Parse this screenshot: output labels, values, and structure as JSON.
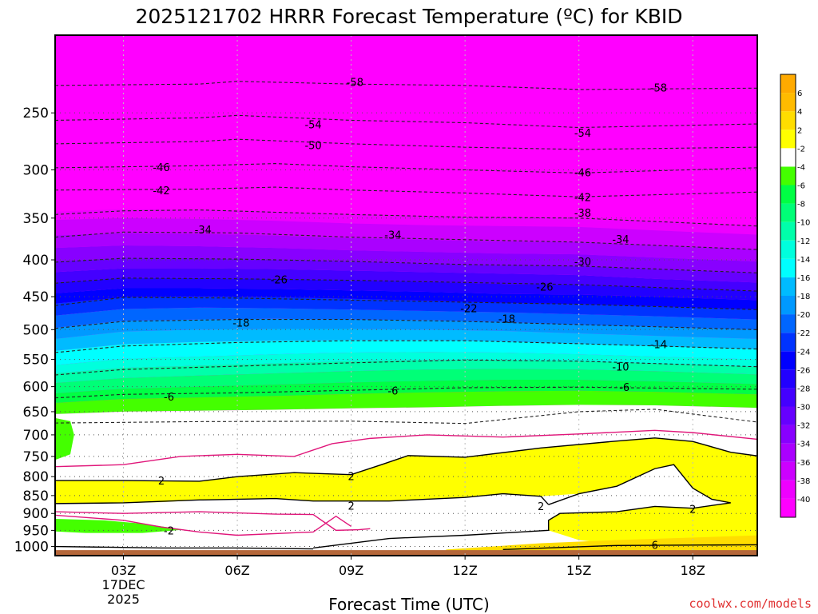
{
  "chart_data": {
    "type": "heatmap",
    "title": "2025121702 HRRR Forecast Temperature (ºC) for KBID",
    "xlabel": "Forecast Time (UTC)",
    "ylabel": "",
    "credit": "coolwx.com/models",
    "x_range_hours": [
      1.2,
      19.7
    ],
    "x_ticks": [
      {
        "hour": 3,
        "label": "03Z",
        "date_line1": "17DEC",
        "date_line2": "2025"
      },
      {
        "hour": 6,
        "label": "06Z"
      },
      {
        "hour": 9,
        "label": "09Z"
      },
      {
        "hour": 12,
        "label": "12Z"
      },
      {
        "hour": 15,
        "label": "15Z"
      },
      {
        "hour": 18,
        "label": "18Z"
      }
    ],
    "y_scale": "log",
    "y_range_hpa": [
      195,
      1030
    ],
    "y_ticks": [
      250,
      300,
      350,
      400,
      450,
      500,
      550,
      600,
      650,
      700,
      750,
      800,
      850,
      900,
      950,
      1000
    ],
    "colorbar": {
      "levels": [
        -40,
        -38,
        -36,
        -34,
        -32,
        -30,
        -28,
        -26,
        -24,
        -22,
        -20,
        -18,
        -16,
        -14,
        -12,
        -10,
        -8,
        -6,
        -4,
        -2,
        2,
        4,
        6
      ],
      "colors": [
        "#ff00ff",
        "#ee00ff",
        "#cc00ff",
        "#aa00ff",
        "#8800ff",
        "#6600ff",
        "#4400ff",
        "#2200ff",
        "#0000ff",
        "#0033ff",
        "#0066ff",
        "#0099ff",
        "#00bbff",
        "#00ffff",
        "#00ffdd",
        "#00ffaa",
        "#00ff77",
        "#00ff44",
        "#44ff00",
        "#ffffff",
        "#ffff00",
        "#ffdd00",
        "#ffbb00",
        "#ffaa00"
      ]
    },
    "isotherm_labels": [
      {
        "value": "-58",
        "hour": 9.1,
        "hpa": 227
      },
      {
        "value": "-58",
        "hour": 17.1,
        "hpa": 231
      },
      {
        "value": "-54",
        "hour": 8.0,
        "hpa": 260
      },
      {
        "value": "-54",
        "hour": 15.1,
        "hpa": 267
      },
      {
        "value": "-50",
        "hour": 8.0,
        "hpa": 278
      },
      {
        "value": "-46",
        "hour": 4.0,
        "hpa": 298
      },
      {
        "value": "-46",
        "hour": 15.1,
        "hpa": 303
      },
      {
        "value": "-42",
        "hour": 4.0,
        "hpa": 321
      },
      {
        "value": "-42",
        "hour": 15.1,
        "hpa": 328
      },
      {
        "value": "-38",
        "hour": 15.1,
        "hpa": 345
      },
      {
        "value": "-34",
        "hour": 5.1,
        "hpa": 364
      },
      {
        "value": "-34",
        "hour": 10.1,
        "hpa": 370
      },
      {
        "value": "-34",
        "hour": 16.1,
        "hpa": 375
      },
      {
        "value": "-30",
        "hour": 15.1,
        "hpa": 403
      },
      {
        "value": "-26",
        "hour": 7.1,
        "hpa": 427
      },
      {
        "value": "-26",
        "hour": 14.1,
        "hpa": 437
      },
      {
        "value": "-22",
        "hour": 12.1,
        "hpa": 468
      },
      {
        "value": "-18",
        "hour": 6.1,
        "hpa": 490
      },
      {
        "value": "-18",
        "hour": 13.1,
        "hpa": 484
      },
      {
        "value": "-14",
        "hour": 17.1,
        "hpa": 525
      },
      {
        "value": "-10",
        "hour": 16.1,
        "hpa": 564
      },
      {
        "value": "-6",
        "hour": 4.2,
        "hpa": 621
      },
      {
        "value": "-6",
        "hour": 10.1,
        "hpa": 609
      },
      {
        "value": "-6",
        "hour": 16.2,
        "hpa": 602
      },
      {
        "value": "-2",
        "hour": 4.2,
        "hpa": 953
      },
      {
        "value": "2",
        "hour": 4.0,
        "hpa": 812
      },
      {
        "value": "2",
        "hour": 9.0,
        "hpa": 801
      },
      {
        "value": "2",
        "hour": 9.0,
        "hpa": 880
      },
      {
        "value": "2",
        "hour": 14.0,
        "hpa": 881
      },
      {
        "value": "2",
        "hour": 18.0,
        "hpa": 889
      },
      {
        "value": "6",
        "hour": 17.0,
        "hpa": 997
      }
    ]
  }
}
